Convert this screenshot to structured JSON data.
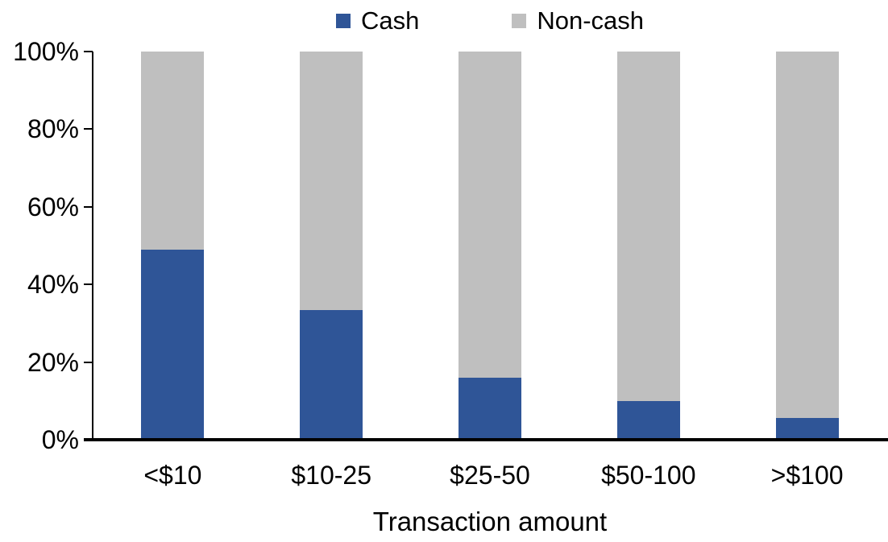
{
  "legend": {
    "items": [
      {
        "label": "Cash",
        "color": "#2F5597"
      },
      {
        "label": "Non-cash",
        "color": "#BFBFBF"
      }
    ]
  },
  "xaxis": {
    "title": "Transaction amount"
  },
  "chart_data": {
    "type": "bar",
    "stacked": true,
    "title": "",
    "xlabel": "Transaction amount",
    "ylabel": "",
    "categories": [
      "<$10",
      "$10-25",
      "$25-50",
      "$50-100",
      ">$100"
    ],
    "series": [
      {
        "name": "Cash",
        "color": "#2F5597",
        "values": [
          49,
          33.5,
          16,
          10,
          5.5
        ]
      },
      {
        "name": "Non-cash",
        "color": "#BFBFBF",
        "values": [
          51,
          66.5,
          84,
          90,
          94.5
        ]
      }
    ],
    "ylim": [
      0,
      100
    ],
    "yticks": [
      "0%",
      "20%",
      "40%",
      "60%",
      "80%",
      "100%"
    ],
    "ytick_values": [
      0,
      20,
      40,
      60,
      80,
      100
    ],
    "grid": false,
    "legend_position": "top-center"
  }
}
